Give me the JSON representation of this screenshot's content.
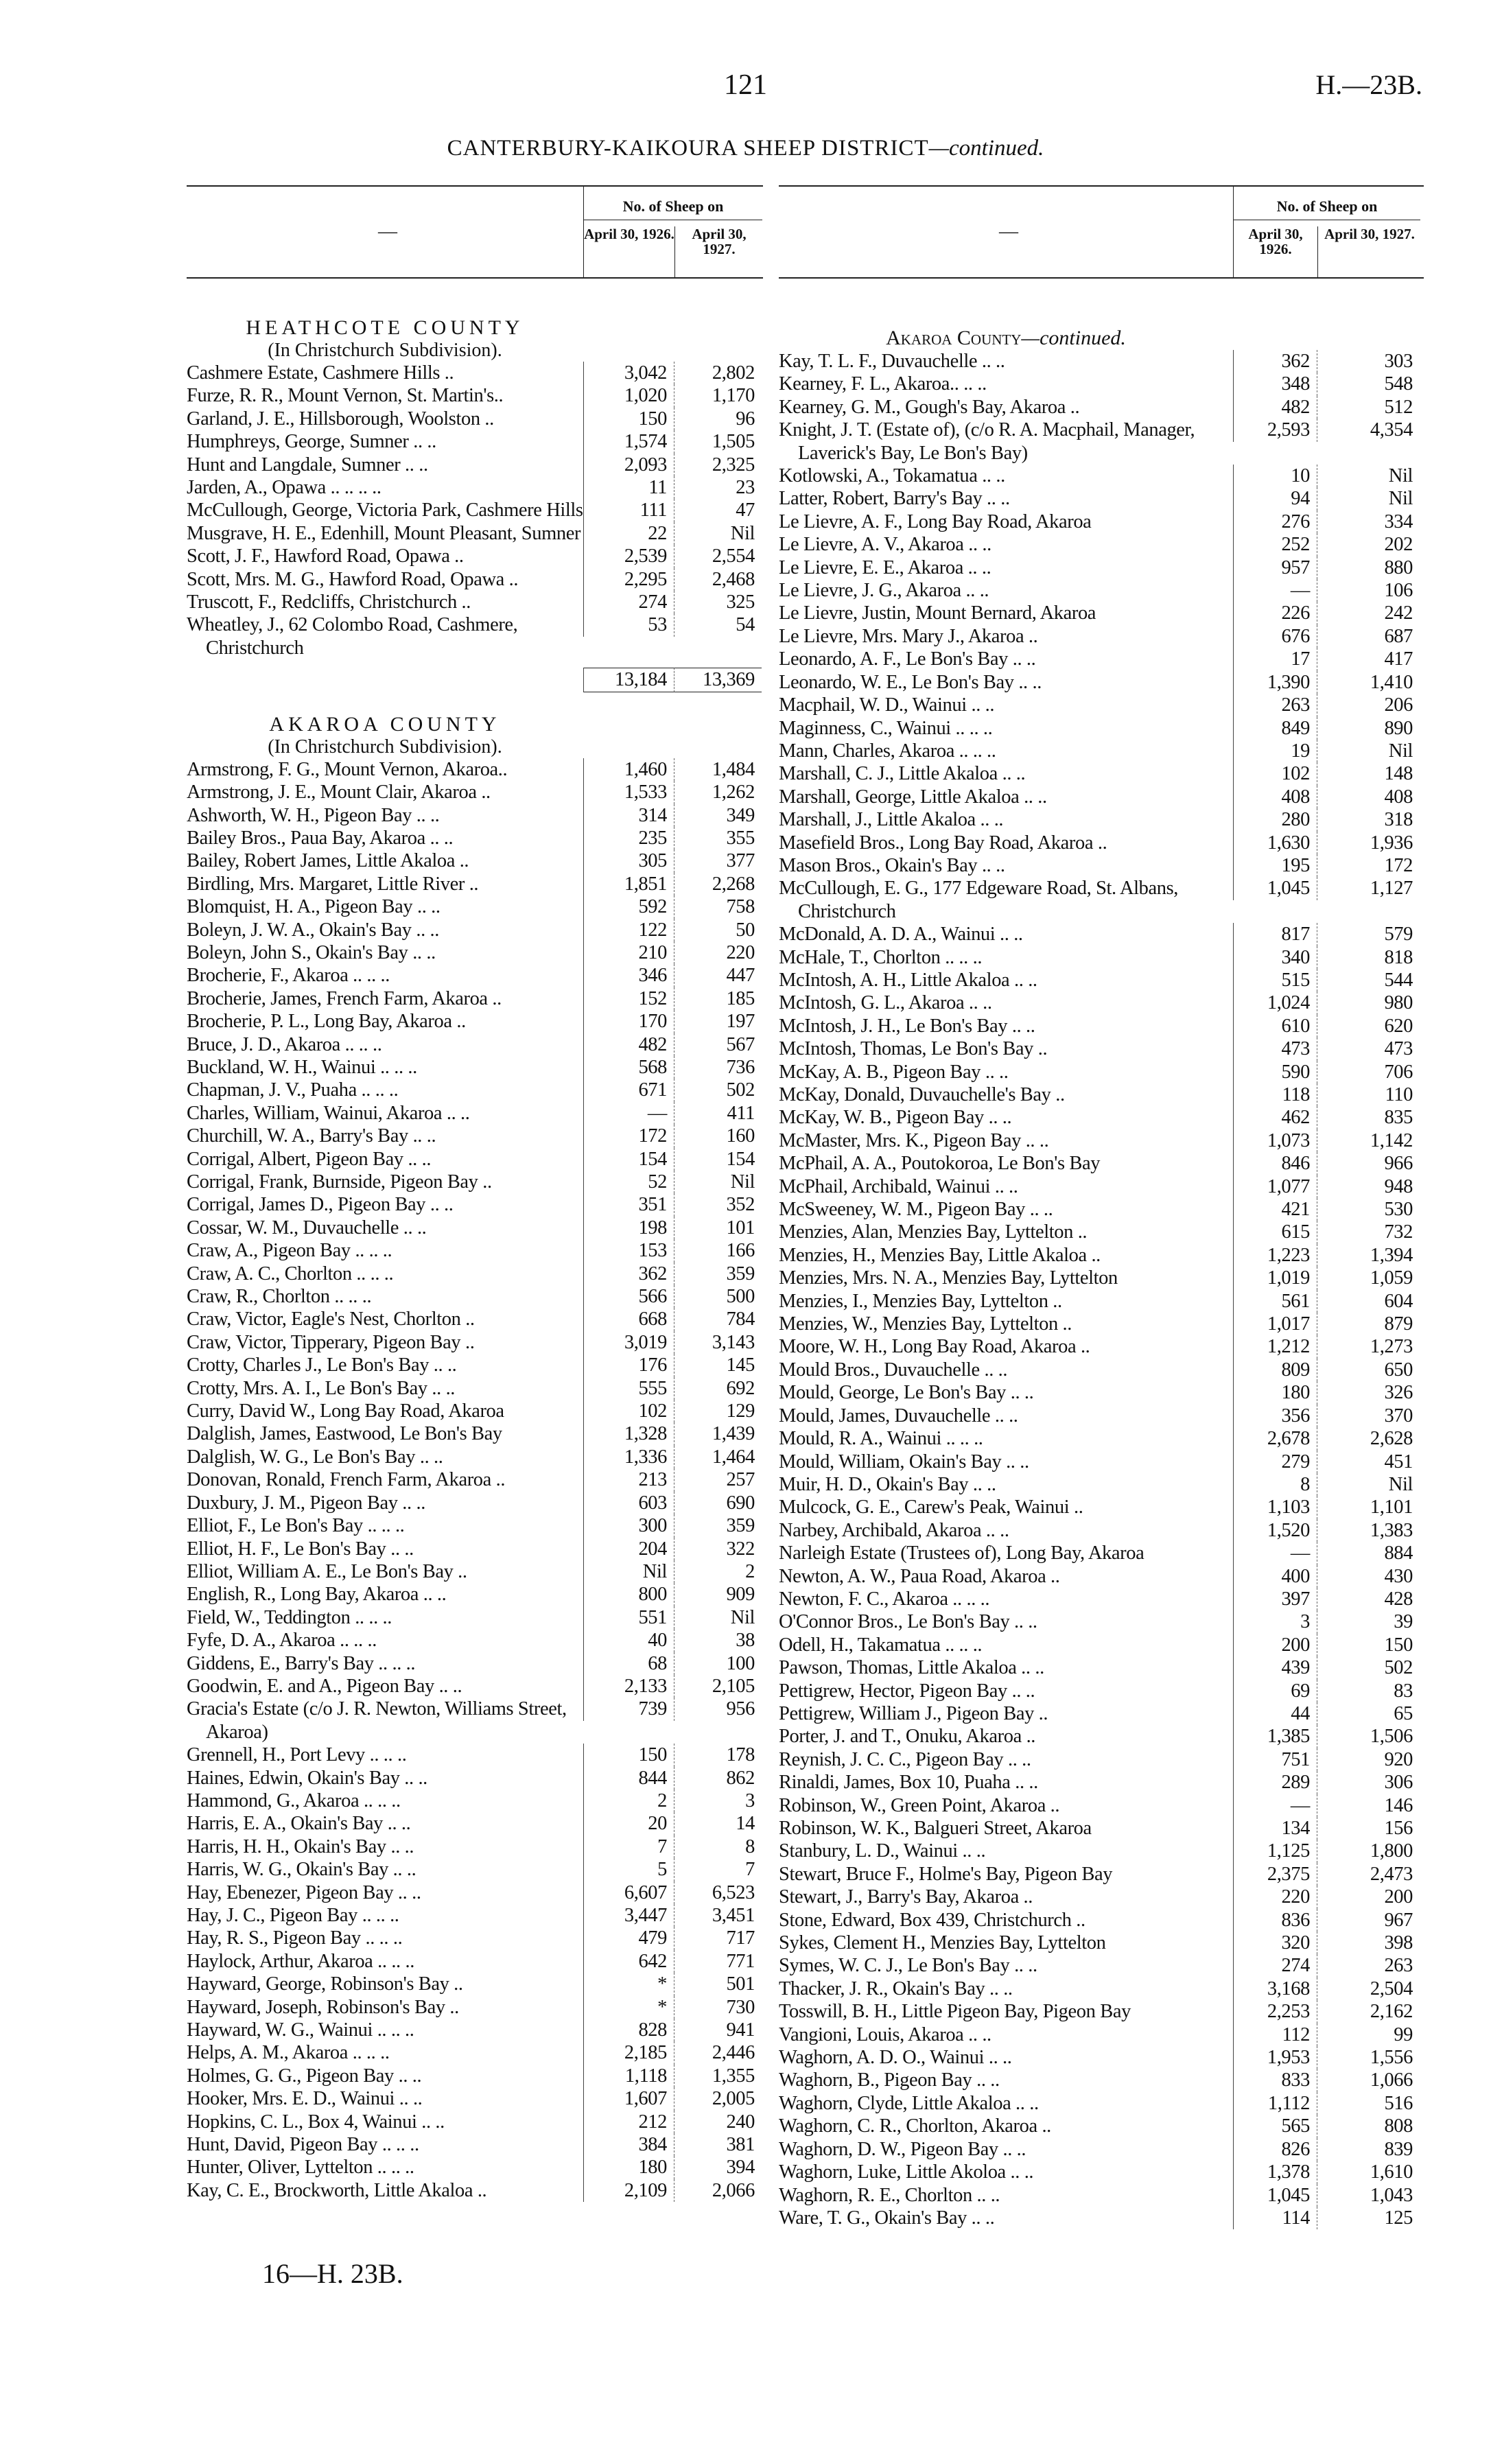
{
  "page_number": "121",
  "doc_ref": "H.—23B.",
  "title": "CANTERBURY-KAIKOURA SHEEP DISTRICT",
  "title_suffix": "—continued.",
  "footer": "16—H. 23B.",
  "columns_header": {
    "dash": "—",
    "group": "No. of Sheep on",
    "col1": "April 30, 1926.",
    "col2": "April 30, 1927."
  },
  "left": [
    {
      "heading": "HEATHCOTE COUNTY",
      "subheading": "(In Christchurch Subdivision).",
      "entries": [
        [
          "Cashmere Estate, Cashmere Hills ..",
          "3,042",
          "2,802"
        ],
        [
          "Furze, R. R., Mount Vernon, St. Martin's..",
          "1,020",
          "1,170"
        ],
        [
          "Garland, J. E., Hillsborough, Woolston ..",
          "150",
          "96"
        ],
        [
          "Humphreys, George, Sumner .. ..",
          "1,574",
          "1,505"
        ],
        [
          "Hunt and Langdale, Sumner .. ..",
          "2,093",
          "2,325"
        ],
        [
          "Jarden, A., Opawa .. .. .. ..",
          "11",
          "23"
        ],
        [
          "McCullough, George, Victoria Park, Cashmere Hills",
          "111",
          "47"
        ],
        [
          "Musgrave, H. E., Edenhill, Mount Pleasant, Sumner",
          "22",
          "Nil"
        ],
        [
          "Scott, J. F., Hawford Road, Opawa ..",
          "2,539",
          "2,554"
        ],
        [
          "Scott, Mrs. M. G., Hawford Road, Opawa ..",
          "2,295",
          "2,468"
        ],
        [
          "Truscott, F., Redcliffs, Christchurch ..",
          "274",
          "325"
        ],
        [
          "Wheatley, J., 62 Colombo Road, Cashmere, Christchurch",
          "53",
          "54"
        ]
      ],
      "total": [
        "13,184",
        "13,369"
      ]
    },
    {
      "heading": "AKAROA COUNTY",
      "subheading": "(In Christchurch Subdivision).",
      "entries": [
        [
          "Armstrong, F. G., Mount Vernon, Akaroa..",
          "1,460",
          "1,484"
        ],
        [
          "Armstrong, J. E., Mount Clair, Akaroa ..",
          "1,533",
          "1,262"
        ],
        [
          "Ashworth, W. H., Pigeon Bay .. ..",
          "314",
          "349"
        ],
        [
          "Bailey Bros., Paua Bay, Akaroa .. ..",
          "235",
          "355"
        ],
        [
          "Bailey, Robert James, Little Akaloa ..",
          "305",
          "377"
        ],
        [
          "Birdling, Mrs. Margaret, Little River ..",
          "1,851",
          "2,268"
        ],
        [
          "Blomquist, H. A., Pigeon Bay .. ..",
          "592",
          "758"
        ],
        [
          "Boleyn, J. W. A., Okain's Bay .. ..",
          "122",
          "50"
        ],
        [
          "Boleyn, John S., Okain's Bay .. ..",
          "210",
          "220"
        ],
        [
          "Brocherie, F., Akaroa .. .. ..",
          "346",
          "447"
        ],
        [
          "Brocherie, James, French Farm, Akaroa ..",
          "152",
          "185"
        ],
        [
          "Brocherie, P. L., Long Bay, Akaroa ..",
          "170",
          "197"
        ],
        [
          "Bruce, J. D., Akaroa .. .. ..",
          "482",
          "567"
        ],
        [
          "Buckland, W. H., Wainui .. .. ..",
          "568",
          "736"
        ],
        [
          "Chapman, J. V., Puaha .. .. ..",
          "671",
          "502"
        ],
        [
          "Charles, William, Wainui, Akaroa .. ..",
          "—",
          "411"
        ],
        [
          "Churchill, W. A., Barry's Bay .. ..",
          "172",
          "160"
        ],
        [
          "Corrigal, Albert, Pigeon Bay .. ..",
          "154",
          "154"
        ],
        [
          "Corrigal, Frank, Burnside, Pigeon Bay ..",
          "52",
          "Nil"
        ],
        [
          "Corrigal, James D., Pigeon Bay .. ..",
          "351",
          "352"
        ],
        [
          "Cossar, W. M., Duvauchelle .. ..",
          "198",
          "101"
        ],
        [
          "Craw, A., Pigeon Bay .. .. ..",
          "153",
          "166"
        ],
        [
          "Craw, A. C., Chorlton .. .. ..",
          "362",
          "359"
        ],
        [
          "Craw, R., Chorlton .. .. ..",
          "566",
          "500"
        ],
        [
          "Craw, Victor, Eagle's Nest, Chorlton ..",
          "668",
          "784"
        ],
        [
          "Craw, Victor, Tipperary, Pigeon Bay ..",
          "3,019",
          "3,143"
        ],
        [
          "Crotty, Charles J., Le Bon's Bay .. ..",
          "176",
          "145"
        ],
        [
          "Crotty, Mrs. A. I., Le Bon's Bay .. ..",
          "555",
          "692"
        ],
        [
          "Curry, David W., Long Bay Road, Akaroa",
          "102",
          "129"
        ],
        [
          "Dalglish, James, Eastwood, Le Bon's Bay",
          "1,328",
          "1,439"
        ],
        [
          "Dalglish, W. G., Le Bon's Bay .. ..",
          "1,336",
          "1,464"
        ],
        [
          "Donovan, Ronald, French Farm, Akaroa ..",
          "213",
          "257"
        ],
        [
          "Duxbury, J. M., Pigeon Bay .. ..",
          "603",
          "690"
        ],
        [
          "Elliot, F., Le Bon's Bay .. .. ..",
          "300",
          "359"
        ],
        [
          "Elliot, H. F., Le Bon's Bay .. ..",
          "204",
          "322"
        ],
        [
          "Elliot, William A. E., Le Bon's Bay ..",
          "Nil",
          "2"
        ],
        [
          "English, R., Long Bay, Akaroa .. ..",
          "800",
          "909"
        ],
        [
          "Field, W., Teddington .. .. ..",
          "551",
          "Nil"
        ],
        [
          "Fyfe, D. A., Akaroa .. .. ..",
          "40",
          "38"
        ],
        [
          "Giddens, E., Barry's Bay .. .. ..",
          "68",
          "100"
        ],
        [
          "Goodwin, E. and A., Pigeon Bay .. ..",
          "2,133",
          "2,105"
        ],
        [
          "Gracia's Estate (c/o J. R. Newton, Williams Street, Akaroa)",
          "739",
          "956"
        ],
        [
          "Grennell, H., Port Levy .. .. ..",
          "150",
          "178"
        ],
        [
          "Haines, Edwin, Okain's Bay .. ..",
          "844",
          "862"
        ],
        [
          "Hammond, G., Akaroa .. .. ..",
          "2",
          "3"
        ],
        [
          "Harris, E. A., Okain's Bay .. ..",
          "20",
          "14"
        ],
        [
          "Harris, H. H., Okain's Bay .. ..",
          "7",
          "8"
        ],
        [
          "Harris, W. G., Okain's Bay .. ..",
          "5",
          "7"
        ],
        [
          "Hay, Ebenezer, Pigeon Bay .. ..",
          "6,607",
          "6,523"
        ],
        [
          "Hay, J. C., Pigeon Bay .. .. ..",
          "3,447",
          "3,451"
        ],
        [
          "Hay, R. S., Pigeon Bay .. .. ..",
          "479",
          "717"
        ],
        [
          "Haylock, Arthur, Akaroa .. .. ..",
          "642",
          "771"
        ],
        [
          "Hayward, George, Robinson's Bay ..",
          "*",
          "501"
        ],
        [
          "Hayward, Joseph, Robinson's Bay ..",
          "*",
          "730"
        ],
        [
          "Hayward, W. G., Wainui .. .. ..",
          "828",
          "941"
        ],
        [
          "Helps, A. M., Akaroa .. .. ..",
          "2,185",
          "2,446"
        ],
        [
          "Holmes, G. G., Pigeon Bay .. ..",
          "1,118",
          "1,355"
        ],
        [
          "Hooker, Mrs. E. D., Wainui .. ..",
          "1,607",
          "2,005"
        ],
        [
          "Hopkins, C. L., Box 4, Wainui .. ..",
          "212",
          "240"
        ],
        [
          "Hunt, David, Pigeon Bay .. .. ..",
          "384",
          "381"
        ],
        [
          "Hunter, Oliver, Lyttelton .. .. ..",
          "180",
          "394"
        ],
        [
          "Kay, C. E., Brockworth, Little Akaloa ..",
          "2,109",
          "2,066"
        ]
      ]
    }
  ],
  "right": [
    {
      "heading": "Akaroa County",
      "heading_suffix": "—continued.",
      "entries": [
        [
          "Kay, T. L. F., Duvauchelle .. ..",
          "362",
          "303"
        ],
        [
          "Kearney, F. L., Akaroa.. .. ..",
          "348",
          "548"
        ],
        [
          "Kearney, G. M., Gough's Bay, Akaroa ..",
          "482",
          "512"
        ],
        [
          "Knight, J. T. (Estate of), (c/o R. A. Macphail, Manager, Laverick's Bay, Le Bon's Bay)",
          "2,593",
          "4,354"
        ],
        [
          "Kotlowski, A., Tokamatua .. ..",
          "10",
          "Nil"
        ],
        [
          "Latter, Robert, Barry's Bay .. ..",
          "94",
          "Nil"
        ],
        [
          "Le Lievre, A. F., Long Bay Road, Akaroa",
          "276",
          "334"
        ],
        [
          "Le Lievre, A. V., Akaroa .. ..",
          "252",
          "202"
        ],
        [
          "Le Lievre, E. E., Akaroa .. ..",
          "957",
          "880"
        ],
        [
          "Le Lievre, J. G., Akaroa .. ..",
          "—",
          "106"
        ],
        [
          "Le Lievre, Justin, Mount Bernard, Akaroa",
          "226",
          "242"
        ],
        [
          "Le Lievre, Mrs. Mary J., Akaroa ..",
          "676",
          "687"
        ],
        [
          "Leonardo, A. F., Le Bon's Bay .. ..",
          "17",
          "417"
        ],
        [
          "Leonardo, W. E., Le Bon's Bay .. ..",
          "1,390",
          "1,410"
        ],
        [
          "Macphail, W. D., Wainui .. ..",
          "263",
          "206"
        ],
        [
          "Maginness, C., Wainui .. .. ..",
          "849",
          "890"
        ],
        [
          "Mann, Charles, Akaroa .. .. ..",
          "19",
          "Nil"
        ],
        [
          "Marshall, C. J., Little Akaloa .. ..",
          "102",
          "148"
        ],
        [
          "Marshall, George, Little Akaloa .. ..",
          "408",
          "408"
        ],
        [
          "Marshall, J., Little Akaloa .. ..",
          "280",
          "318"
        ],
        [
          "Masefield Bros., Long Bay Road, Akaroa ..",
          "1,630",
          "1,936"
        ],
        [
          "Mason Bros., Okain's Bay .. ..",
          "195",
          "172"
        ],
        [
          "McCullough, E. G., 177 Edgeware Road, St. Albans, Christchurch",
          "1,045",
          "1,127"
        ],
        [
          "McDonald, A. D. A., Wainui .. ..",
          "817",
          "579"
        ],
        [
          "McHale, T., Chorlton .. .. ..",
          "340",
          "818"
        ],
        [
          "McIntosh, A. H., Little Akaloa .. ..",
          "515",
          "544"
        ],
        [
          "McIntosh, G. L., Akaroa .. ..",
          "1,024",
          "980"
        ],
        [
          "McIntosh, J. H., Le Bon's Bay .. ..",
          "610",
          "620"
        ],
        [
          "McIntosh, Thomas, Le Bon's Bay ..",
          "473",
          "473"
        ],
        [
          "McKay, A. B., Pigeon Bay .. ..",
          "590",
          "706"
        ],
        [
          "McKay, Donald, Duvauchelle's Bay ..",
          "118",
          "110"
        ],
        [
          "McKay, W. B., Pigeon Bay .. ..",
          "462",
          "835"
        ],
        [
          "McMaster, Mrs. K., Pigeon Bay .. ..",
          "1,073",
          "1,142"
        ],
        [
          "McPhail, A. A., Poutokoroa, Le Bon's Bay",
          "846",
          "966"
        ],
        [
          "McPhail, Archibald, Wainui .. ..",
          "1,077",
          "948"
        ],
        [
          "McSweeney, W. M., Pigeon Bay .. ..",
          "421",
          "530"
        ],
        [
          "Menzies, Alan, Menzies Bay, Lyttelton ..",
          "615",
          "732"
        ],
        [
          "Menzies, H., Menzies Bay, Little Akaloa ..",
          "1,223",
          "1,394"
        ],
        [
          "Menzies, Mrs. N. A., Menzies Bay, Lyttelton",
          "1,019",
          "1,059"
        ],
        [
          "Menzies, I., Menzies Bay, Lyttelton ..",
          "561",
          "604"
        ],
        [
          "Menzies, W., Menzies Bay, Lyttelton ..",
          "1,017",
          "879"
        ],
        [
          "Moore, W. H., Long Bay Road, Akaroa ..",
          "1,212",
          "1,273"
        ],
        [
          "Mould Bros., Duvauchelle .. ..",
          "809",
          "650"
        ],
        [
          "Mould, George, Le Bon's Bay .. ..",
          "180",
          "326"
        ],
        [
          "Mould, James, Duvauchelle .. ..",
          "356",
          "370"
        ],
        [
          "Mould, R. A., Wainui .. .. ..",
          "2,678",
          "2,628"
        ],
        [
          "Mould, William, Okain's Bay .. ..",
          "279",
          "451"
        ],
        [
          "Muir, H. D., Okain's Bay .. ..",
          "8",
          "Nil"
        ],
        [
          "Mulcock, G. E., Carew's Peak, Wainui ..",
          "1,103",
          "1,101"
        ],
        [
          "Narbey, Archibald, Akaroa .. ..",
          "1,520",
          "1,383"
        ],
        [
          "Narleigh Estate (Trustees of), Long Bay, Akaroa",
          "—",
          "884"
        ],
        [
          "Newton, A. W., Paua Road, Akaroa ..",
          "400",
          "430"
        ],
        [
          "Newton, F. C., Akaroa .. .. ..",
          "397",
          "428"
        ],
        [
          "O'Connor Bros., Le Bon's Bay .. ..",
          "3",
          "39"
        ],
        [
          "Odell, H., Takamatua .. .. ..",
          "200",
          "150"
        ],
        [
          "Pawson, Thomas, Little Akaloa .. ..",
          "439",
          "502"
        ],
        [
          "Pettigrew, Hector, Pigeon Bay .. ..",
          "69",
          "83"
        ],
        [
          "Pettigrew, William J., Pigeon Bay ..",
          "44",
          "65"
        ],
        [
          "Porter, J. and T., Onuku, Akaroa ..",
          "1,385",
          "1,506"
        ],
        [
          "Reynish, J. C. C., Pigeon Bay .. ..",
          "751",
          "920"
        ],
        [
          "Rinaldi, James, Box 10, Puaha .. ..",
          "289",
          "306"
        ],
        [
          "Robinson, W., Green Point, Akaroa ..",
          "—",
          "146"
        ],
        [
          "Robinson, W. K., Balgueri Street, Akaroa",
          "134",
          "156"
        ],
        [
          "Stanbury, L. D., Wainui .. ..",
          "1,125",
          "1,800"
        ],
        [
          "Stewart, Bruce F., Holme's Bay, Pigeon Bay",
          "2,375",
          "2,473"
        ],
        [
          "Stewart, J., Barry's Bay, Akaroa ..",
          "220",
          "200"
        ],
        [
          "Stone, Edward, Box 439, Christchurch ..",
          "836",
          "967"
        ],
        [
          "Sykes, Clement H., Menzies Bay, Lyttelton",
          "320",
          "398"
        ],
        [
          "Symes, W. C. J., Le Bon's Bay .. ..",
          "274",
          "263"
        ],
        [
          "Thacker, J. R., Okain's Bay .. ..",
          "3,168",
          "2,504"
        ],
        [
          "Tosswill, B. H., Little Pigeon Bay, Pigeon Bay",
          "2,253",
          "2,162"
        ],
        [
          "Vangioni, Louis, Akaroa .. ..",
          "112",
          "99"
        ],
        [
          "Waghorn, A. D. O., Wainui .. ..",
          "1,953",
          "1,556"
        ],
        [
          "Waghorn, B., Pigeon Bay .. ..",
          "833",
          "1,066"
        ],
        [
          "Waghorn, Clyde, Little Akaloa .. ..",
          "1,112",
          "516"
        ],
        [
          "Waghorn, C. R., Chorlton, Akaroa ..",
          "565",
          "808"
        ],
        [
          "Waghorn, D. W., Pigeon Bay .. ..",
          "826",
          "839"
        ],
        [
          "Waghorn, Luke, Little Akoloa .. ..",
          "1,378",
          "1,610"
        ],
        [
          "Waghorn, R. E., Chorlton .. ..",
          "1,045",
          "1,043"
        ],
        [
          "Ware, T. G., Okain's Bay .. ..",
          "114",
          "125"
        ]
      ]
    }
  ]
}
